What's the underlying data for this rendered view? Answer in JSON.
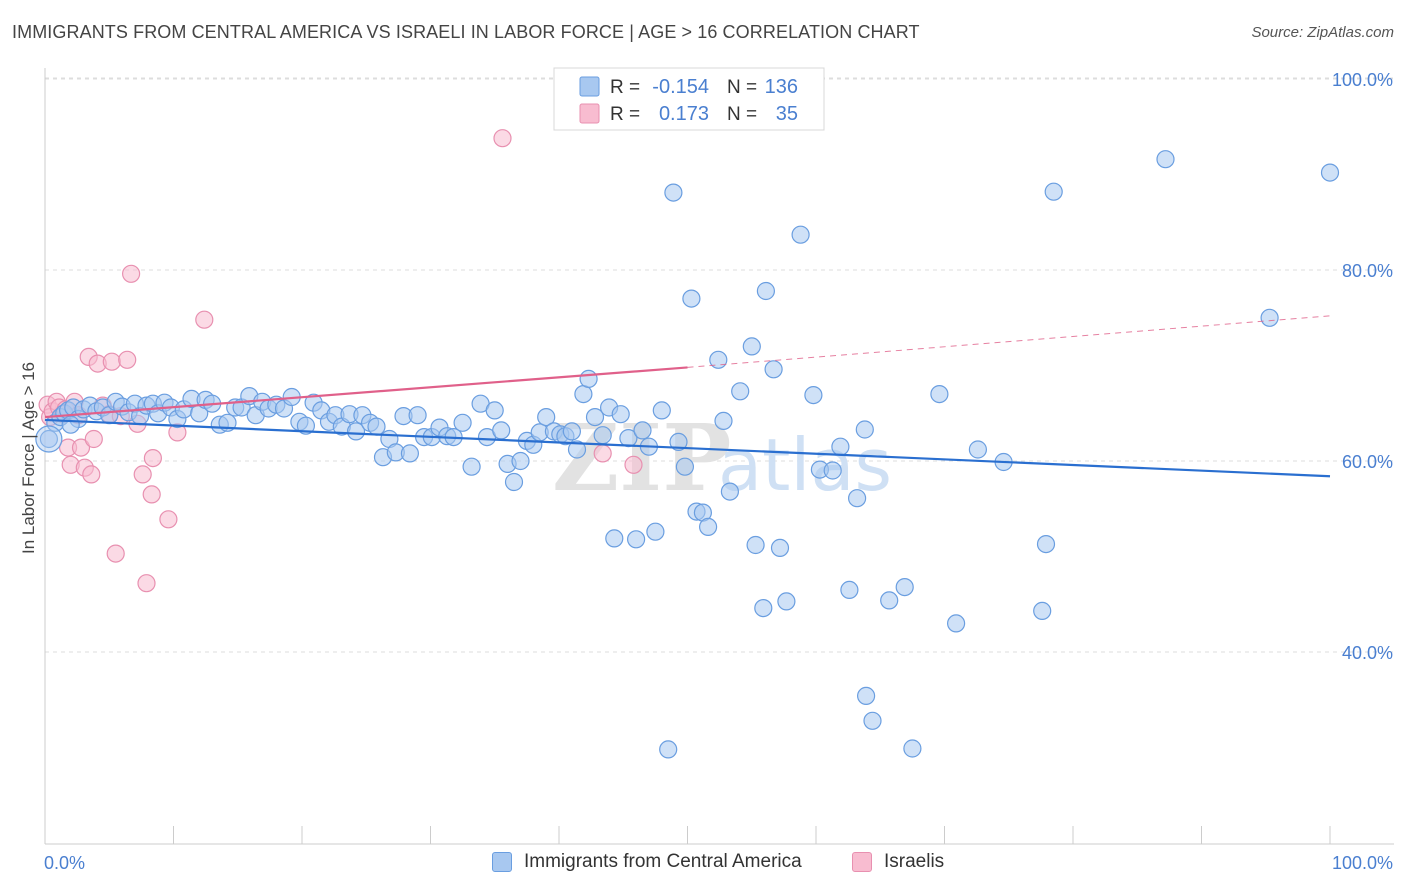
{
  "title": "IMMIGRANTS FROM CENTRAL AMERICA VS ISRAELI IN LABOR FORCE | AGE > 16 CORRELATION CHART",
  "source": "Source: ZipAtlas.com",
  "watermark": "ZIPatlas",
  "legend_top": {
    "rows": [
      {
        "r_label": "R =",
        "r_value": "-0.154",
        "n_label": "N =",
        "n_value": "136"
      },
      {
        "r_label": "R =",
        "r_value": "0.173",
        "n_label": "N =",
        "n_value": "35"
      }
    ]
  },
  "legend_bottom": [
    "Immigrants from Central America",
    "Israelis"
  ],
  "colors": {
    "blue_fill": "#a8c8f0",
    "blue_stroke": "#6a9ee0",
    "blue_line": "#2a6fd0",
    "pink_fill": "#f8bcd0",
    "pink_stroke": "#e890b0",
    "pink_line": "#e0608a",
    "axis_text": "#4a7fd0",
    "grid": "#dddddd"
  },
  "chart_data": {
    "type": "scatter",
    "title": "IMMIGRANTS FROM CENTRAL AMERICA VS ISRAELI IN LABOR FORCE | AGE > 16 CORRELATION CHART",
    "xlabel": "",
    "ylabel": "In Labor Force | Age > 16",
    "xlim": [
      0,
      100
    ],
    "ylim": [
      20,
      104
    ],
    "x_tick_labels": [
      "0.0%",
      "100.0%"
    ],
    "y_ticks": [
      40,
      60,
      80,
      100
    ],
    "y_tick_labels": [
      "40.0%",
      "60.0%",
      "80.0%",
      "100.0%"
    ],
    "grid": true,
    "legend_position": "top-center",
    "series": [
      {
        "name": "Immigrants from Central America",
        "R": -0.154,
        "N": 136,
        "trend": {
          "x0": 0,
          "y0": 64.3,
          "x1": 100,
          "y1": 58.4
        },
        "points": [
          [
            0.3,
            62.3
          ],
          [
            0.8,
            64.0
          ],
          [
            1.2,
            64.6
          ],
          [
            1.5,
            65.0
          ],
          [
            1.8,
            65.3
          ],
          [
            2.2,
            65.6
          ],
          [
            2.6,
            64.4
          ],
          [
            3.0,
            65.4
          ],
          [
            3.5,
            65.8
          ],
          [
            4.0,
            65.2
          ],
          [
            4.5,
            65.6
          ],
          [
            5.0,
            64.8
          ],
          [
            5.5,
            66.2
          ],
          [
            6.0,
            65.7
          ],
          [
            6.5,
            65.1
          ],
          [
            7.0,
            66.0
          ],
          [
            7.4,
            64.7
          ],
          [
            7.9,
            65.8
          ],
          [
            8.4,
            66.0
          ],
          [
            8.8,
            65.0
          ],
          [
            9.3,
            66.1
          ],
          [
            9.8,
            65.6
          ],
          [
            10.3,
            64.4
          ],
          [
            10.8,
            65.4
          ],
          [
            11.4,
            66.5
          ],
          [
            12.0,
            65.0
          ],
          [
            12.5,
            66.4
          ],
          [
            13.0,
            66.0
          ],
          [
            13.6,
            63.8
          ],
          [
            14.2,
            64.0
          ],
          [
            14.8,
            65.6
          ],
          [
            15.3,
            65.6
          ],
          [
            15.9,
            66.8
          ],
          [
            16.4,
            64.8
          ],
          [
            16.9,
            66.2
          ],
          [
            17.4,
            65.5
          ],
          [
            18.0,
            65.9
          ],
          [
            18.6,
            65.5
          ],
          [
            19.2,
            66.7
          ],
          [
            19.8,
            64.1
          ],
          [
            20.3,
            63.7
          ],
          [
            20.9,
            66.1
          ],
          [
            21.5,
            65.3
          ],
          [
            22.1,
            64.1
          ],
          [
            22.6,
            64.8
          ],
          [
            23.1,
            63.6
          ],
          [
            23.7,
            64.9
          ],
          [
            24.2,
            63.1
          ],
          [
            24.7,
            64.8
          ],
          [
            25.3,
            64.0
          ],
          [
            25.8,
            63.6
          ],
          [
            26.3,
            60.4
          ],
          [
            26.8,
            62.3
          ],
          [
            27.3,
            60.9
          ],
          [
            27.9,
            64.7
          ],
          [
            28.4,
            60.8
          ],
          [
            29.0,
            64.8
          ],
          [
            29.5,
            62.5
          ],
          [
            30.1,
            62.5
          ],
          [
            30.7,
            63.5
          ],
          [
            31.3,
            62.6
          ],
          [
            31.8,
            62.5
          ],
          [
            32.5,
            64.0
          ],
          [
            33.2,
            59.4
          ],
          [
            33.9,
            66.0
          ],
          [
            34.4,
            62.5
          ],
          [
            35.0,
            65.3
          ],
          [
            35.5,
            63.2
          ],
          [
            36.0,
            59.7
          ],
          [
            36.5,
            57.8
          ],
          [
            37.0,
            60.0
          ],
          [
            37.5,
            62.1
          ],
          [
            38.0,
            61.7
          ],
          [
            38.5,
            63.0
          ],
          [
            39.0,
            64.6
          ],
          [
            39.6,
            63.1
          ],
          [
            40.1,
            62.8
          ],
          [
            40.5,
            62.6
          ],
          [
            41.0,
            63.1
          ],
          [
            41.4,
            61.2
          ],
          [
            41.9,
            67.0
          ],
          [
            42.3,
            68.6
          ],
          [
            42.8,
            64.6
          ],
          [
            43.4,
            62.7
          ],
          [
            43.9,
            65.6
          ],
          [
            44.3,
            51.9
          ],
          [
            44.8,
            64.9
          ],
          [
            45.4,
            62.4
          ],
          [
            46.0,
            51.8
          ],
          [
            46.5,
            63.2
          ],
          [
            47.0,
            61.5
          ],
          [
            47.5,
            52.6
          ],
          [
            48.0,
            65.3
          ],
          [
            48.5,
            29.8
          ],
          [
            48.9,
            88.1
          ],
          [
            49.3,
            62.0
          ],
          [
            49.8,
            59.4
          ],
          [
            50.3,
            77.0
          ],
          [
            50.7,
            54.7
          ],
          [
            51.2,
            54.6
          ],
          [
            51.6,
            53.1
          ],
          [
            52.4,
            70.6
          ],
          [
            52.8,
            64.2
          ],
          [
            53.3,
            56.8
          ],
          [
            54.1,
            67.3
          ],
          [
            55.0,
            72.0
          ],
          [
            55.3,
            51.2
          ],
          [
            55.9,
            44.6
          ],
          [
            56.1,
            77.8
          ],
          [
            56.7,
            69.6
          ],
          [
            57.2,
            50.9
          ],
          [
            57.7,
            45.3
          ],
          [
            58.8,
            83.7
          ],
          [
            59.8,
            66.9
          ],
          [
            60.3,
            59.1
          ],
          [
            61.3,
            59.0
          ],
          [
            61.9,
            61.5
          ],
          [
            62.6,
            46.5
          ],
          [
            63.2,
            56.1
          ],
          [
            63.8,
            63.3
          ],
          [
            63.9,
            35.4
          ],
          [
            64.4,
            32.8
          ],
          [
            65.7,
            45.4
          ],
          [
            66.9,
            46.8
          ],
          [
            67.5,
            29.9
          ],
          [
            69.6,
            67.0
          ],
          [
            70.9,
            43.0
          ],
          [
            72.6,
            61.2
          ],
          [
            74.6,
            59.9
          ],
          [
            77.6,
            44.3
          ],
          [
            77.9,
            51.3
          ],
          [
            78.5,
            88.2
          ],
          [
            87.2,
            91.6
          ],
          [
            95.3,
            75.0
          ],
          [
            100.0,
            90.2
          ],
          [
            2.0,
            63.8
          ]
        ]
      },
      {
        "name": "Israelis",
        "R": 0.173,
        "N": 35,
        "trend": {
          "x0": 0,
          "y0": 64.6,
          "x1": 50,
          "y1": 69.8,
          "dashed_to": {
            "x": 100,
            "y": 75.2
          }
        },
        "points": [
          [
            0.2,
            65.9
          ],
          [
            0.4,
            64.6
          ],
          [
            0.6,
            65.2
          ],
          [
            0.9,
            66.2
          ],
          [
            1.1,
            65.6
          ],
          [
            1.4,
            64.9
          ],
          [
            1.6,
            65.4
          ],
          [
            1.8,
            61.4
          ],
          [
            2.0,
            59.6
          ],
          [
            2.3,
            66.2
          ],
          [
            2.6,
            64.8
          ],
          [
            2.8,
            61.4
          ],
          [
            3.1,
            59.3
          ],
          [
            3.4,
            70.9
          ],
          [
            3.6,
            58.6
          ],
          [
            3.8,
            62.3
          ],
          [
            4.1,
            70.2
          ],
          [
            4.5,
            65.8
          ],
          [
            5.0,
            64.9
          ],
          [
            5.2,
            70.4
          ],
          [
            5.5,
            50.3
          ],
          [
            5.9,
            64.7
          ],
          [
            6.4,
            70.6
          ],
          [
            6.7,
            79.6
          ],
          [
            7.2,
            63.9
          ],
          [
            7.6,
            58.6
          ],
          [
            7.9,
            47.2
          ],
          [
            8.3,
            56.5
          ],
          [
            8.4,
            60.3
          ],
          [
            9.6,
            53.9
          ],
          [
            10.3,
            63.0
          ],
          [
            12.4,
            74.8
          ],
          [
            35.6,
            93.8
          ],
          [
            43.4,
            60.8
          ],
          [
            45.8,
            59.6
          ]
        ]
      }
    ]
  }
}
